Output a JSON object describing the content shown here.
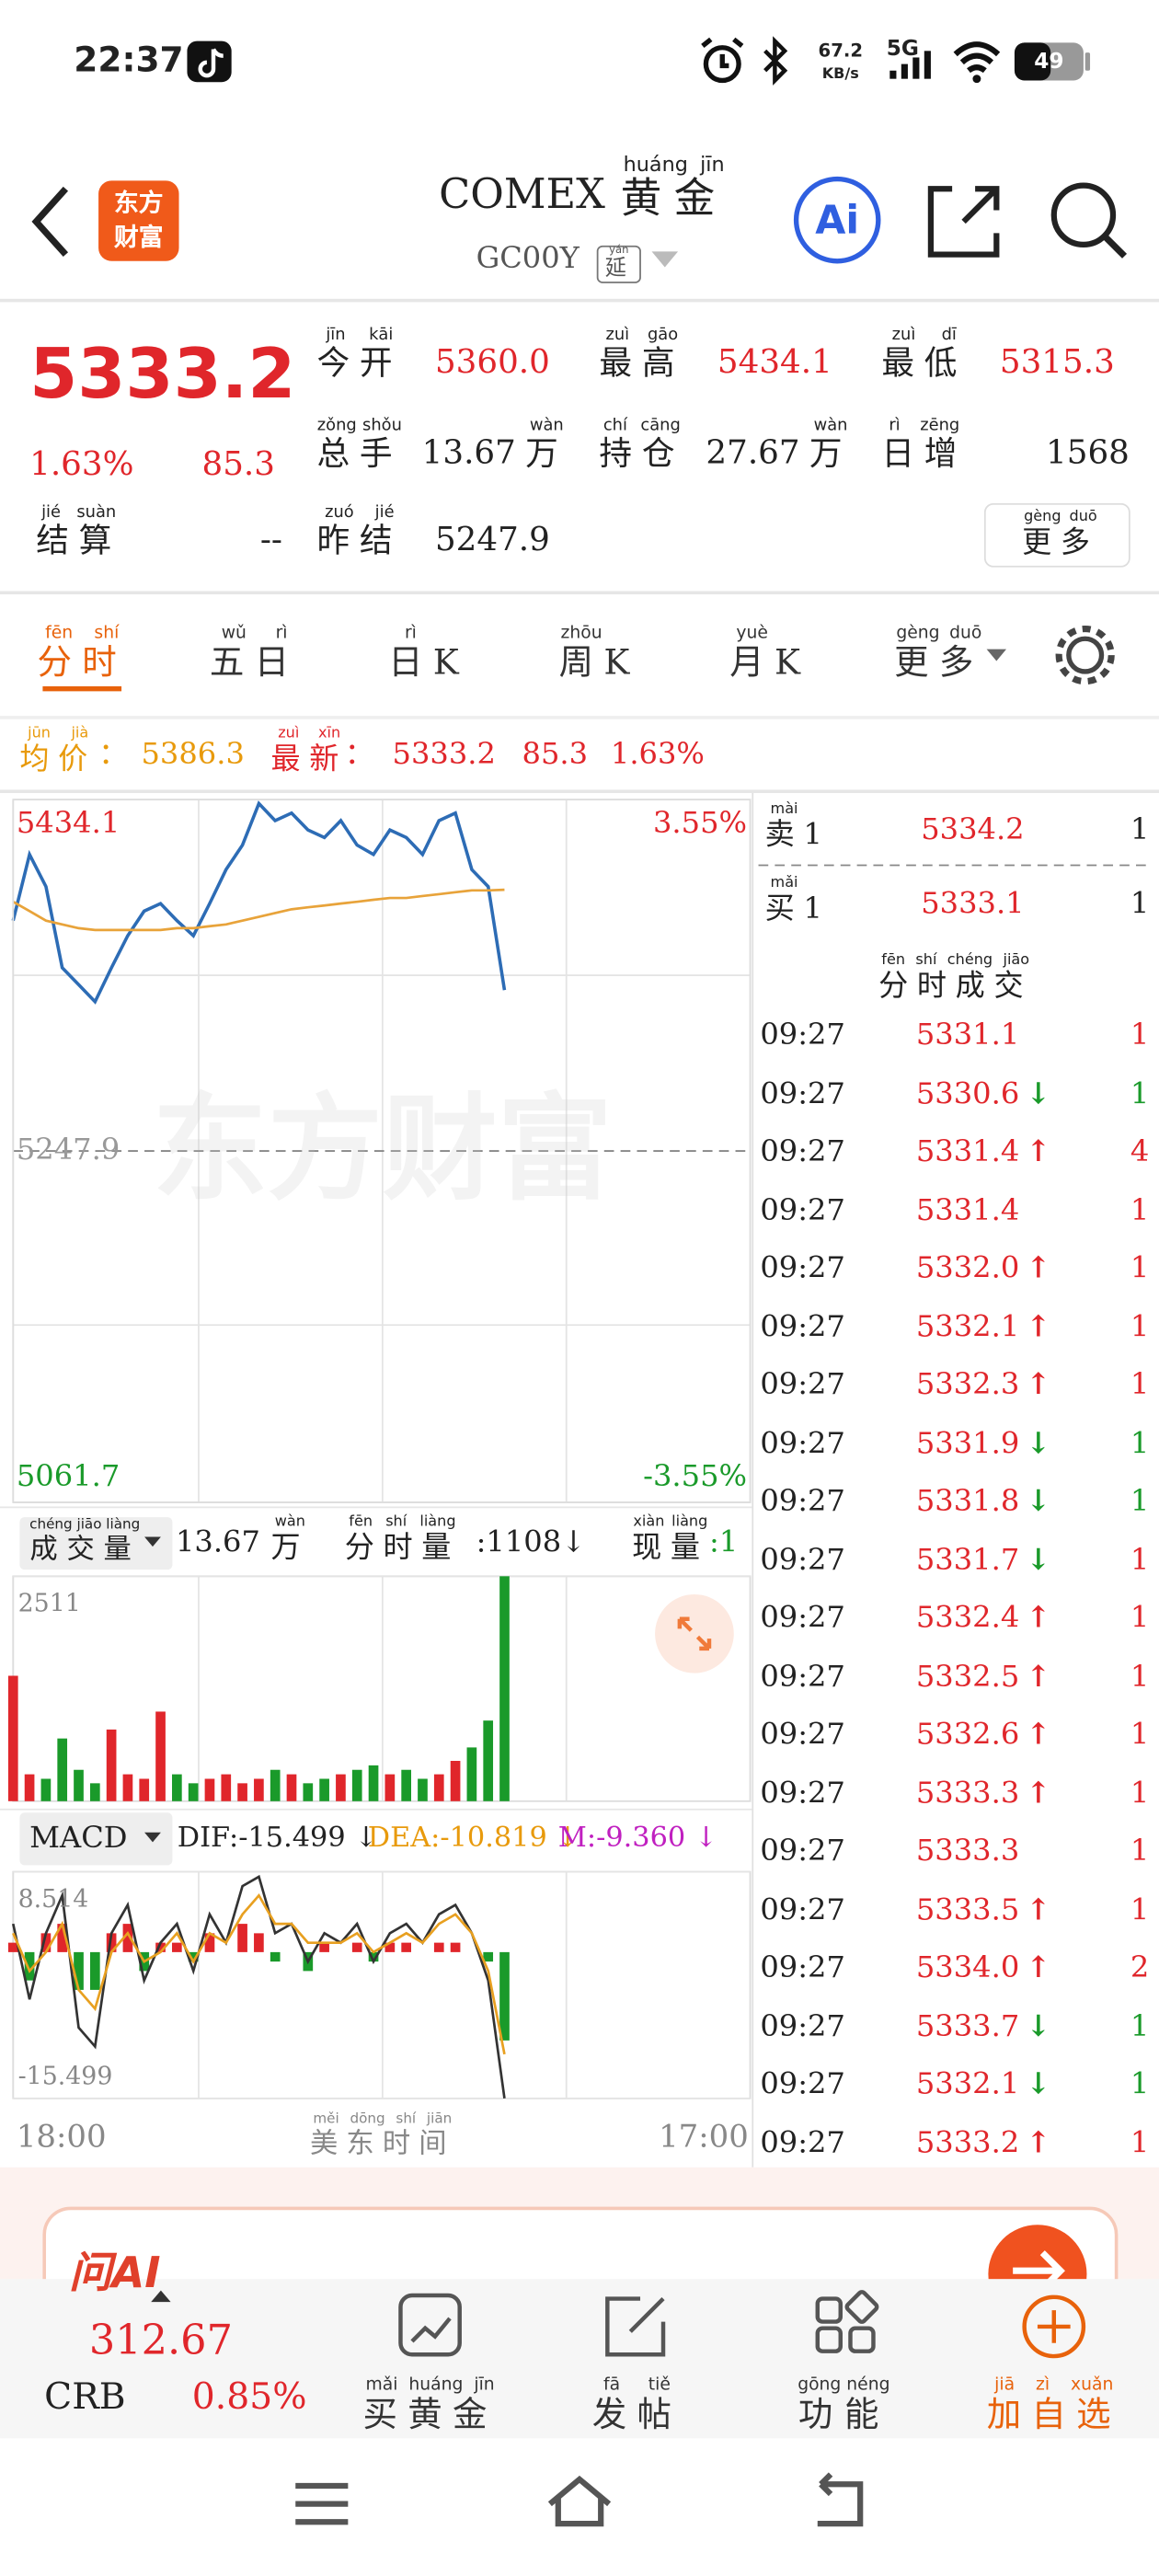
{
  "status_bar": {
    "time": "22:37",
    "speed": "67.2",
    "speed_unit": "KB/s",
    "network": "5G",
    "battery": "49"
  },
  "header": {
    "logo": [
      "东方",
      "财富"
    ],
    "title": "COMEX",
    "title_cn": {
      "text": "黄金",
      "pinyin": "huáng jīn"
    },
    "code": "GC00Y",
    "delay": {
      "text": "延",
      "pinyin": "yán"
    },
    "ai": "Ai"
  },
  "quote": {
    "price": "5333.2",
    "change_pct": "1.63%",
    "change": "85.3",
    "fields": [
      {
        "label": {
          "text": "今开",
          "pinyin": "jīn kāi"
        },
        "value": "5360.0"
      },
      {
        "label": {
          "text": "最高",
          "pinyin": "zuì gāo"
        },
        "value": "5434.1"
      },
      {
        "label": {
          "text": "最低",
          "pinyin": "zuì dī"
        },
        "value": "5315.3"
      },
      {
        "label": {
          "text": "总手",
          "pinyin": "zǒng shǒu"
        },
        "value": "13.67",
        "unit": {
          "text": "万",
          "pinyin": "wàn"
        }
      },
      {
        "label": {
          "text": "持仓",
          "pinyin": "chí cāng"
        },
        "value": "27.67",
        "unit": {
          "text": "万",
          "pinyin": "wàn"
        }
      },
      {
        "label": {
          "text": "日增",
          "pinyin": "rì zēng"
        },
        "value": "1568"
      },
      {
        "label": {
          "text": "结算",
          "pinyin": "jié suàn"
        },
        "value": "--"
      },
      {
        "label": {
          "text": "昨结",
          "pinyin": "zuó jié"
        },
        "value": "5247.9"
      }
    ],
    "more": {
      "text": "更多",
      "pinyin": "gèng duō"
    }
  },
  "tabs": [
    {
      "text": "分时",
      "pinyin": "fēn shí"
    },
    {
      "text": "五日",
      "pinyin": "wǔ rì"
    },
    {
      "text": "日",
      "pinyin": "rì",
      "suffix": "K"
    },
    {
      "text": "周",
      "pinyin": "zhōu",
      "suffix": "K"
    },
    {
      "text": "月",
      "pinyin": "yuè",
      "suffix": "K"
    },
    {
      "text": "更多",
      "pinyin": "gèng duō"
    }
  ],
  "info_bar": {
    "avg_label": {
      "text": "均价",
      "pinyin": "jūn jià"
    },
    "colon": "：",
    "avg": "5386.3",
    "last_label": {
      "text": "最新",
      "pinyin": "zuì xīn"
    },
    "last": "5333.2",
    "change": "85.3",
    "change_pct": "1.63%"
  },
  "price_chart": {
    "type": "line",
    "watermark": "东方财富",
    "ylim": [
      5061.7,
      5434.1
    ],
    "yticks": [
      5434.1,
      5247.9,
      5061.7
    ],
    "y2lim": [
      -3.55,
      3.55
    ],
    "y2ticks": [
      {
        "value": 3.55,
        "label": "3.55%"
      },
      {
        "value": -3.55,
        "label": "-3.55%"
      }
    ],
    "grid": true,
    "series": [
      {
        "color": "#2d6cb5",
        "values": [
          5370,
          5405,
          5388,
          5345,
          5336,
          5327,
          5345,
          5362,
          5375,
          5379,
          5370,
          5362,
          5379,
          5397,
          5410,
          5432,
          5423,
          5427,
          5418,
          5414,
          5423,
          5410,
          5405,
          5418,
          5414,
          5405,
          5423,
          5427,
          5397,
          5388,
          5333.2
        ]
      },
      {
        "color": "#e8a33a",
        "values": [
          5380,
          5375,
          5370,
          5368,
          5366,
          5365,
          5365,
          5365,
          5365,
          5365,
          5366,
          5366,
          5367,
          5368,
          5370,
          5372,
          5374,
          5376,
          5377,
          5378,
          5379,
          5380,
          5381,
          5382,
          5382,
          5383,
          5384,
          5385,
          5386,
          5386,
          5386.3
        ]
      }
    ]
  },
  "volume_header": {
    "label": {
      "text": "成交量",
      "pinyin": "chéng jiāo liàng"
    },
    "total": "13.67",
    "unit": {
      "text": "万",
      "pinyin": "wàn"
    },
    "period_label": {
      "text": "分时量",
      "pinyin": "fēn shí liàng"
    },
    "period_value": ":1108↓",
    "current_label": {
      "text": "现量",
      "pinyin": "xiàn liàng"
    },
    "current_value": ":1"
  },
  "volume_chart": {
    "type": "bar",
    "ylim": [
      0,
      2511
    ],
    "yticks": [
      2511
    ],
    "up_color": "#e0262b",
    "down_color": "#1a9a2a",
    "values": [
      1400,
      300,
      250,
      700,
      350,
      200,
      800,
      300,
      250,
      1000,
      300,
      200,
      250,
      300,
      200,
      250,
      350,
      300,
      200,
      250,
      300,
      350,
      400,
      300,
      350,
      250,
      300,
      450,
      600,
      900,
      2511
    ]
  },
  "macd_header": {
    "label": "MACD",
    "dif": "DIF:-15.499 ↓",
    "dea": "DEA:-10.819 ↓",
    "m": "M:-9.360 ↓"
  },
  "macd_chart": {
    "type": "macd",
    "ylim": [
      -15.499,
      8.514
    ],
    "yticks": [
      8.514,
      -15.499
    ],
    "dif": {
      "color": "#333333",
      "values": [
        3,
        -5,
        2,
        6,
        -8,
        -10,
        2,
        5,
        -3,
        1,
        3,
        -2,
        4,
        1,
        7,
        8,
        2,
        3,
        -1,
        2,
        1,
        3,
        -1,
        2,
        3,
        1,
        4,
        5,
        2,
        -3,
        -15.499
      ]
    },
    "dea": {
      "color": "#e8a020",
      "values": [
        2,
        -2,
        0,
        3,
        -4,
        -6,
        0,
        2,
        -1,
        0,
        2,
        -1,
        2,
        1,
        4,
        6,
        3,
        3,
        1,
        1,
        1,
        2,
        0,
        1,
        2,
        1,
        3,
        4,
        2,
        -2,
        -10.819
      ]
    },
    "m": {
      "up_color": "#e0262b",
      "down_color": "#1a9a2a",
      "values": [
        1,
        -3,
        2,
        3,
        -4,
        -4,
        2,
        3,
        -2,
        1,
        1,
        -1,
        2,
        0,
        3,
        2,
        -1,
        0,
        -2,
        1,
        0,
        1,
        -1,
        1,
        1,
        0,
        1,
        1,
        0,
        -1,
        -9.36
      ]
    }
  },
  "time_axis": {
    "start": "18:00",
    "label": {
      "text": "美东时间",
      "pinyin": "měi dōng shí jiān"
    },
    "end": "17:00"
  },
  "order_book": [
    {
      "side": {
        "text": "卖",
        "pinyin": "mài",
        "suffix": "1"
      },
      "price": "5334.2",
      "volume": "1"
    },
    {
      "side": {
        "text": "买",
        "pinyin": "mǎi",
        "suffix": "1"
      },
      "price": "5333.1",
      "volume": "1"
    }
  ],
  "trades_title": {
    "text": "分时成交",
    "pinyin": "fēn shí chéng jiāo"
  },
  "trades": [
    {
      "time": "09:27",
      "price": "5331.1",
      "volume": "1",
      "vol_color": "#e0262b"
    },
    {
      "time": "09:27",
      "price": "5330.6",
      "dir": "↓",
      "volume": "1",
      "vol_color": "#1a9a2a"
    },
    {
      "time": "09:27",
      "price": "5331.4",
      "dir": "↑",
      "volume": "4",
      "vol_color": "#e0262b"
    },
    {
      "time": "09:27",
      "price": "5331.4",
      "volume": "1",
      "vol_color": "#e0262b"
    },
    {
      "time": "09:27",
      "price": "5332.0",
      "dir": "↑",
      "volume": "1",
      "vol_color": "#e0262b"
    },
    {
      "time": "09:27",
      "price": "5332.1",
      "dir": "↑",
      "volume": "1",
      "vol_color": "#e0262b"
    },
    {
      "time": "09:27",
      "price": "5332.3",
      "dir": "↑",
      "volume": "1",
      "vol_color": "#e0262b"
    },
    {
      "time": "09:27",
      "price": "5331.9",
      "dir": "↓",
      "volume": "1",
      "vol_color": "#1a9a2a"
    },
    {
      "time": "09:27",
      "price": "5331.8",
      "dir": "↓",
      "volume": "1",
      "vol_color": "#1a9a2a"
    },
    {
      "time": "09:27",
      "price": "5331.7",
      "dir": "↓",
      "volume": "1",
      "vol_color": "#e0262b"
    },
    {
      "time": "09:27",
      "price": "5332.4",
      "dir": "↑",
      "volume": "1",
      "vol_color": "#e0262b"
    },
    {
      "time": "09:27",
      "price": "5332.5",
      "dir": "↑",
      "volume": "1",
      "vol_color": "#e0262b"
    },
    {
      "time": "09:27",
      "price": "5332.6",
      "dir": "↑",
      "volume": "1",
      "vol_color": "#e0262b"
    },
    {
      "time": "09:27",
      "price": "5333.3",
      "dir": "↑",
      "volume": "1",
      "vol_color": "#e0262b"
    },
    {
      "time": "09:27",
      "price": "5333.3",
      "volume": "1",
      "vol_color": "#e0262b"
    },
    {
      "time": "09:27",
      "price": "5333.5",
      "dir": "↑",
      "volume": "1",
      "vol_color": "#e0262b"
    },
    {
      "time": "09:27",
      "price": "5334.0",
      "dir": "↑",
      "volume": "2",
      "vol_color": "#e0262b"
    },
    {
      "time": "09:27",
      "price": "5333.7",
      "dir": "↓",
      "volume": "1",
      "vol_color": "#1a9a2a"
    },
    {
      "time": "09:27",
      "price": "5332.1",
      "dir": "↓",
      "volume": "1",
      "vol_color": "#1a9a2a"
    },
    {
      "time": "09:27",
      "price": "5333.2",
      "dir": "↑",
      "volume": "1",
      "vol_color": "#e0262b"
    }
  ],
  "banner": {
    "title": "问AI"
  },
  "bottom_bar": {
    "index_value": "312.67",
    "index_name": "CRB",
    "index_change": "0.85%",
    "items": [
      {
        "text": "买黄金",
        "pinyin": "mǎi huáng jīn"
      },
      {
        "text": "发帖",
        "pinyin": "fā tiě"
      },
      {
        "text": "功能",
        "pinyin": "gōng néng"
      },
      {
        "text": "加自选",
        "pinyin": "jiā zì xuǎn"
      }
    ]
  }
}
